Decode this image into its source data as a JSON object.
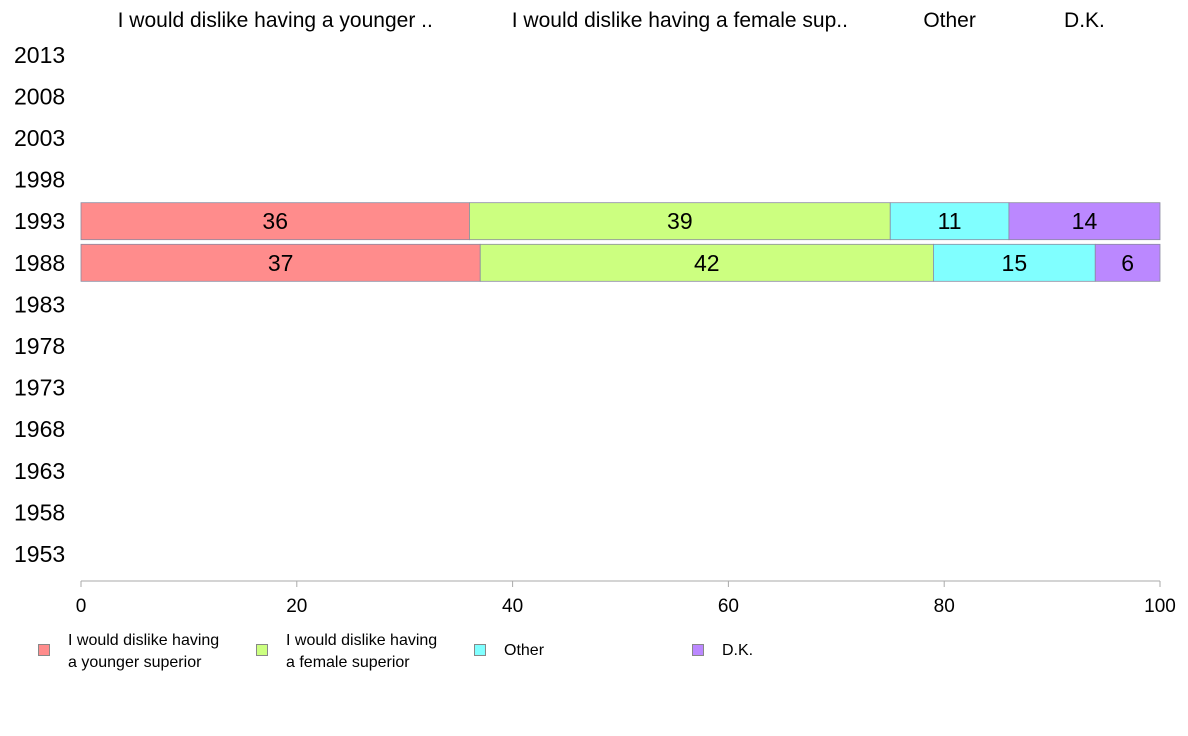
{
  "chart_data": {
    "type": "bar",
    "orientation": "horizontal-stacked",
    "categories": [
      "2013",
      "2008",
      "2003",
      "1998",
      "1993",
      "1988",
      "1983",
      "1978",
      "1973",
      "1968",
      "1963",
      "1958",
      "1953"
    ],
    "series": [
      {
        "name": "I would dislike having a younger superior",
        "header": "I would dislike having a younger ..",
        "color": "#ff8c8c",
        "values": [
          null,
          null,
          null,
          null,
          36,
          37,
          null,
          null,
          null,
          null,
          null,
          null,
          null
        ]
      },
      {
        "name": "I would dislike having a female superior",
        "header": "I would dislike having a female sup..",
        "color": "#ccff80",
        "values": [
          null,
          null,
          null,
          null,
          39,
          42,
          null,
          null,
          null,
          null,
          null,
          null,
          null
        ]
      },
      {
        "name": "Other",
        "header": "Other",
        "color": "#80ffff",
        "values": [
          null,
          null,
          null,
          null,
          11,
          15,
          null,
          null,
          null,
          null,
          null,
          null,
          null
        ]
      },
      {
        "name": "D.K.",
        "header": "D.K.",
        "color": "#bb88ff",
        "values": [
          null,
          null,
          null,
          null,
          14,
          6,
          null,
          null,
          null,
          null,
          null,
          null,
          null
        ]
      }
    ],
    "xlim": [
      0,
      100
    ],
    "xticks": [
      0,
      20,
      40,
      60,
      80,
      100
    ],
    "grid": false,
    "legend_position": "bottom"
  },
  "legend": [
    {
      "text": "I would dislike having\na younger superior",
      "color": "#ff8c8c"
    },
    {
      "text": "I would dislike having\na female superior",
      "color": "#ccff80"
    },
    {
      "text": "Other",
      "color": "#80ffff"
    },
    {
      "text": "D.K.",
      "color": "#bb88ff"
    }
  ]
}
